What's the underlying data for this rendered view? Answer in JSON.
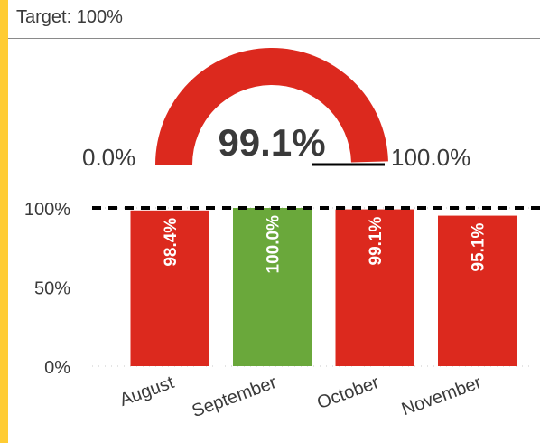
{
  "header": {
    "target_label": "Target: 100%"
  },
  "colors": {
    "accent": "#ffcc33",
    "below_target": "#dc291e",
    "on_target": "#6aa83b",
    "target_line": "#000000"
  },
  "chart_data": [
    {
      "type": "gauge",
      "value": 99.1,
      "value_label": "99.1%",
      "min_label": "0.0%",
      "max_label": "100.0%",
      "range": [
        0,
        100
      ]
    },
    {
      "type": "bar",
      "categories": [
        "August",
        "September",
        "October",
        "November"
      ],
      "values": [
        98.4,
        100.0,
        99.1,
        95.1
      ],
      "data_labels": [
        "98.4%",
        "100.0%",
        "99.1%",
        "95.1%"
      ],
      "bar_colors": [
        "#dc291e",
        "#6aa83b",
        "#dc291e",
        "#dc291e"
      ],
      "ylim": [
        0,
        100
      ],
      "yticks": [
        0,
        50,
        100
      ],
      "ytick_labels": [
        "0%",
        "50%",
        "100%"
      ],
      "target": 100,
      "grid": true
    }
  ]
}
